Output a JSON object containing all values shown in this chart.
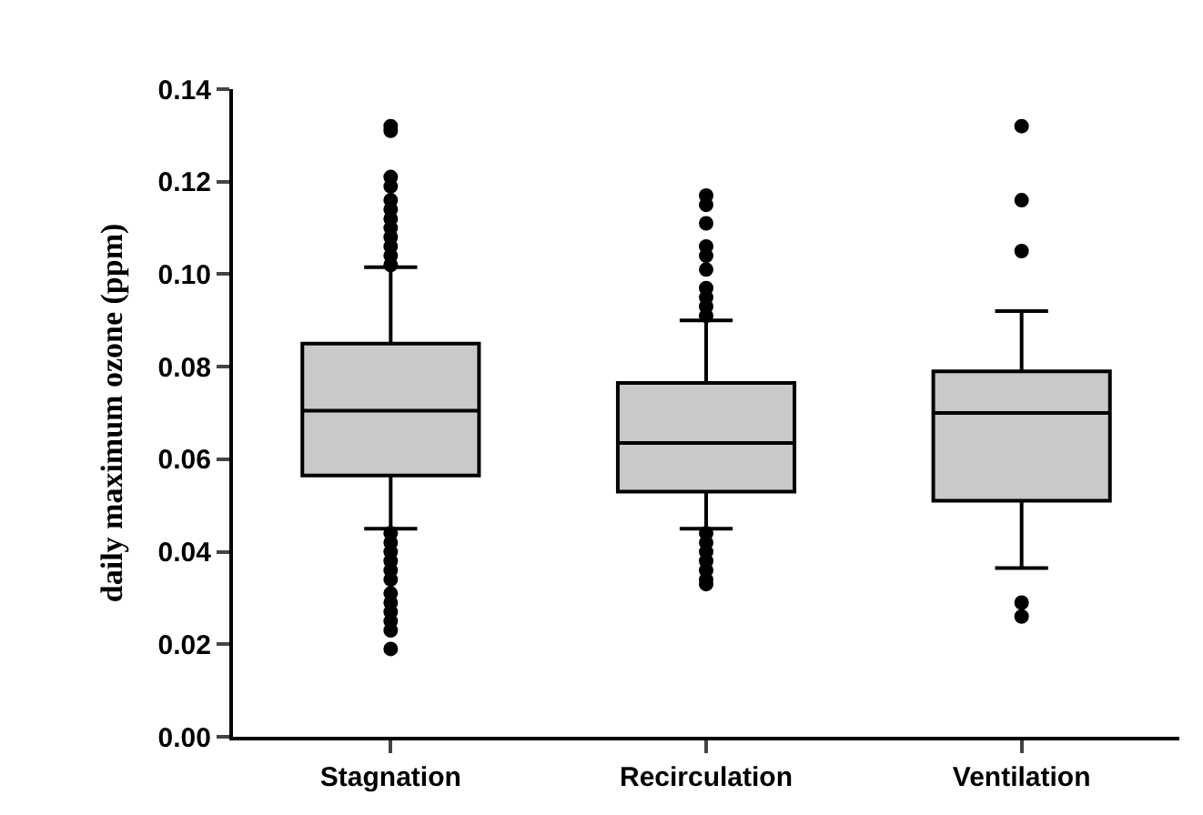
{
  "chart_data": {
    "type": "box",
    "ylabel": "daily maximum ozone (ppm)",
    "categories": [
      "Stagnation",
      "Recirculation",
      "Ventilation"
    ],
    "ylim": [
      0,
      0.14
    ],
    "yticks": [
      {
        "value": 0,
        "label": "0.00"
      },
      {
        "value": 0.02,
        "label": "0.02"
      },
      {
        "value": 0.04,
        "label": "0.04"
      },
      {
        "value": 0.06,
        "label": "0.06"
      },
      {
        "value": 0.08,
        "label": "0.08"
      },
      {
        "value": 0.1,
        "label": "0.10"
      },
      {
        "value": 0.12,
        "label": "0.12"
      },
      {
        "value": 0.14,
        "label": "0.14"
      }
    ],
    "color": "#c8c9cb",
    "marker": "circle",
    "boxes": [
      {
        "low": 0.045,
        "q1": 0.0565,
        "median": 0.0705,
        "q3": 0.085,
        "high": 0.1015,
        "outliers": [
          0.132,
          0.131,
          0.121,
          0.119,
          0.116,
          0.114,
          0.112,
          0.11,
          0.108,
          0.106,
          0.104,
          0.102,
          0.044,
          0.042,
          0.04,
          0.038,
          0.036,
          0.034,
          0.031,
          0.029,
          0.027,
          0.025,
          0.023,
          0.019
        ]
      },
      {
        "low": 0.045,
        "q1": 0.053,
        "median": 0.0635,
        "q3": 0.0765,
        "high": 0.09,
        "outliers": [
          0.117,
          0.115,
          0.111,
          0.106,
          0.104,
          0.101,
          0.097,
          0.095,
          0.093,
          0.091,
          0.044,
          0.042,
          0.04,
          0.038,
          0.036,
          0.034,
          0.033
        ]
      },
      {
        "low": 0.0365,
        "q1": 0.051,
        "median": 0.07,
        "q3": 0.079,
        "high": 0.092,
        "outliers": [
          0.132,
          0.116,
          0.105,
          0.029,
          0.026
        ]
      }
    ]
  }
}
